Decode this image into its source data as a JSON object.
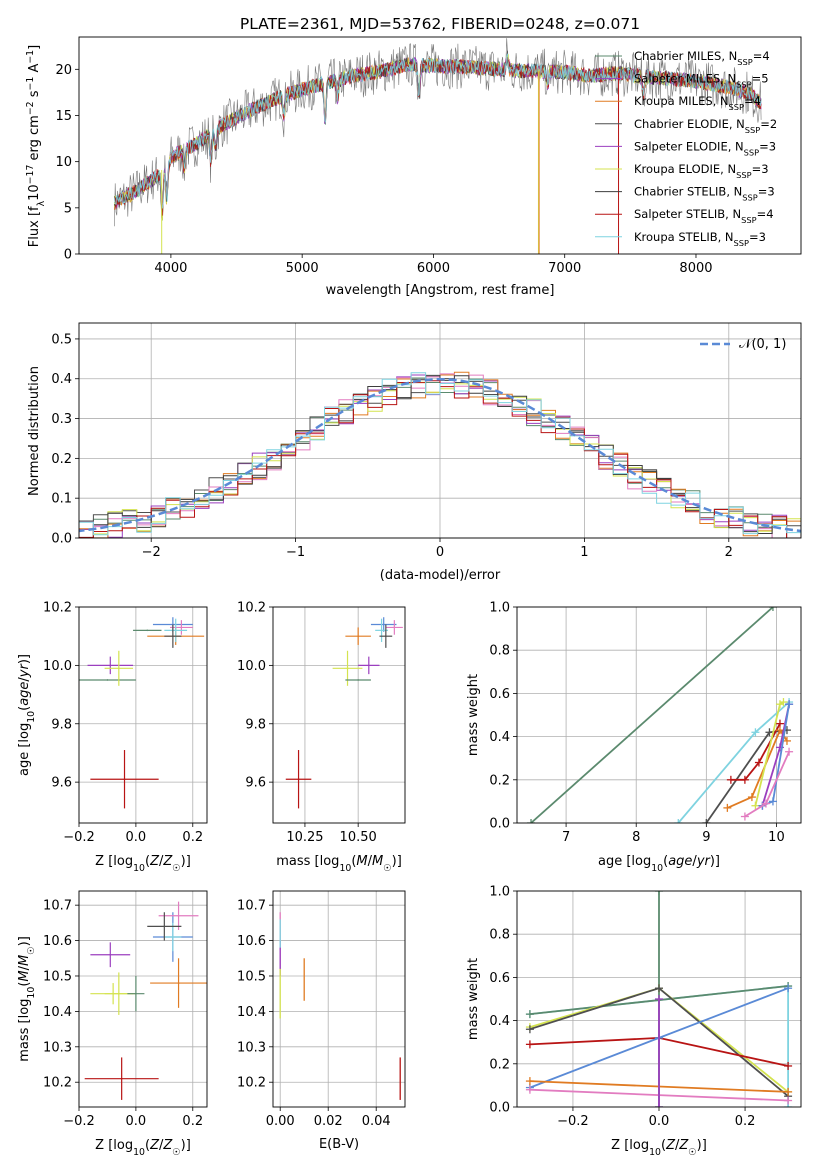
{
  "figure": {
    "title": "PLATE=2361, MJD=53762, FIBERID=0248, z=0.071"
  },
  "colors": {
    "chabrier_miles": "#5b8a6e",
    "salpeter_miles": "#9b3fbf",
    "kroupa_miles": "#e07b22",
    "chabrier_elodie": "#4f4f4f",
    "salpeter_elodie": "#9b3fbf",
    "kroupa_elodie": "#d4e34f",
    "chabrier_stelib": "#3d3d3d",
    "salpeter_stelib": "#b81414",
    "kroupa_stelib": "#7fd3e0",
    "blue": "#5a8ad6",
    "pink": "#e27cc0",
    "gray": "#7f7f7f"
  },
  "chart_data": [
    {
      "type": "line",
      "name": "spectrum",
      "xlabel": "wavelength [Angstrom, rest frame]",
      "ylabel": "Flux [f_λ 10^-17 erg cm^-2 s^-1 A^-1]",
      "xlim": [
        3300,
        8800
      ],
      "ylim": [
        0,
        23.5
      ],
      "xticks": [
        4000,
        5000,
        6000,
        7000,
        8000
      ],
      "yticks": [
        0,
        5,
        10,
        15,
        20
      ],
      "legend_placement": "top-right",
      "legend": [
        {
          "label": "Chabrier MILES, N",
          "sub": "SSP",
          "val": "=4",
          "color": "#5b8a6e"
        },
        {
          "label": "Salpeter MILES, N",
          "sub": "SSP",
          "val": "=5",
          "color": "#9b3fbf"
        },
        {
          "label": "Kroupa MILES, N",
          "sub": "SSP",
          "val": "=4",
          "color": "#e07b22"
        },
        {
          "label": "Chabrier ELODIE, N",
          "sub": "SSP",
          "val": "=2",
          "color": "#4f4f4f"
        },
        {
          "label": "Salpeter ELODIE, N",
          "sub": "SSP",
          "val": "=3",
          "color": "#9b3fbf"
        },
        {
          "label": "Kroupa ELODIE, N",
          "sub": "SSP",
          "val": "=3",
          "color": "#d4e34f"
        },
        {
          "label": "Chabrier STELIB, N",
          "sub": "SSP",
          "val": "=3",
          "color": "#3d3d3d"
        },
        {
          "label": "Salpeter STELIB, N",
          "sub": "SSP",
          "val": "=4",
          "color": "#b81414"
        },
        {
          "label": "Kroupa STELIB, N",
          "sub": "SSP",
          "val": "=3",
          "color": "#7fd3e0"
        }
      ],
      "continuum": {
        "x": [
          3570,
          3700,
          3900,
          4000,
          4200,
          4400,
          4600,
          4800,
          5000,
          5200,
          5400,
          5600,
          5800,
          6000,
          6200,
          6400,
          6600,
          6800,
          7000,
          7200,
          7400,
          7600,
          7800,
          8000,
          8200,
          8400,
          8500
        ],
        "y": [
          5.5,
          6.5,
          8.5,
          10.5,
          12.0,
          14.0,
          15.5,
          16.8,
          17.8,
          18.6,
          19.3,
          19.8,
          20.5,
          20.4,
          20.3,
          20.1,
          19.9,
          19.8,
          19.7,
          19.3,
          19.6,
          19.2,
          19.0,
          18.7,
          18.2,
          17.5,
          16.2
        ]
      }
    },
    {
      "type": "histogram",
      "name": "residuals",
      "xlabel": "(data-model)/error",
      "ylabel": "Normed distribution",
      "xlim": [
        -2.5,
        2.5
      ],
      "ylim": [
        0,
        0.54
      ],
      "xticks": [
        -2,
        -1,
        0,
        1,
        2
      ],
      "yticks": [
        0.0,
        0.1,
        0.2,
        0.3,
        0.4,
        0.5
      ],
      "legend_placement": "top-right",
      "normal_label": "𝒩(0, 1)",
      "grid": true
    },
    {
      "type": "scatter",
      "name": "age_vs_Z",
      "xlabel": "Z [log10(Z/Z☉)]",
      "ylabel": "age  [log10(age/yr)]",
      "xlim": [
        -0.2,
        0.25
      ],
      "ylim": [
        9.46,
        10.2
      ],
      "xticks": [
        -0.2,
        0.0,
        0.2
      ],
      "yticks": [
        9.6,
        9.8,
        10.0,
        10.2
      ],
      "points": [
        {
          "x": -0.1,
          "y": 9.95,
          "ex": 0.1,
          "ey": 0.0,
          "c": "#5b8a6e"
        },
        {
          "x": -0.09,
          "y": 10.0,
          "ex": 0.08,
          "ey": 0.03,
          "c": "#9b3fbf"
        },
        {
          "x": -0.06,
          "y": 9.99,
          "ex": 0.05,
          "ey": 0.06,
          "c": "#d4e34f"
        },
        {
          "x": 0.04,
          "y": 10.12,
          "ex": 0.05,
          "ey": 0.0,
          "c": "#5b8a6e"
        },
        {
          "x": 0.14,
          "y": 10.1,
          "ex": 0.1,
          "ey": 0.03,
          "c": "#e07b22"
        },
        {
          "x": 0.13,
          "y": 10.14,
          "ex": 0.07,
          "ey": 0.025,
          "c": "#5a8ad6"
        },
        {
          "x": 0.16,
          "y": 10.13,
          "ex": 0.04,
          "ey": 0.025,
          "c": "#e27cc0"
        },
        {
          "x": 0.14,
          "y": 10.12,
          "ex": 0.04,
          "ey": 0.04,
          "c": "#7fd3e0"
        },
        {
          "x": 0.13,
          "y": 10.1,
          "ex": 0.03,
          "ey": 0.04,
          "c": "#4f4f4f"
        },
        {
          "x": -0.04,
          "y": 9.61,
          "ex": 0.12,
          "ey": 0.1,
          "c": "#b81414"
        }
      ]
    },
    {
      "type": "scatter",
      "name": "age_vs_mass",
      "xlabel": "mass [log10(M/M☉)]",
      "ylabel": "",
      "xlim": [
        10.1,
        10.72
      ],
      "ylim": [
        9.46,
        10.2
      ],
      "xticks": [
        10.25,
        10.5
      ],
      "xtick_labels": [
        "10.25",
        "10.50"
      ],
      "yticks": [
        9.6,
        9.8,
        10.0,
        10.2
      ],
      "points": [
        {
          "x": 10.22,
          "y": 9.61,
          "ex": 0.06,
          "ey": 0.1,
          "c": "#b81414"
        },
        {
          "x": 10.45,
          "y": 9.99,
          "ex": 0.07,
          "ey": 0.06,
          "c": "#d4e34f"
        },
        {
          "x": 10.55,
          "y": 10.0,
          "ex": 0.05,
          "ey": 0.03,
          "c": "#9b3fbf"
        },
        {
          "x": 10.5,
          "y": 9.95,
          "ex": 0.06,
          "ey": 0.0,
          "c": "#5b8a6e"
        },
        {
          "x": 10.5,
          "y": 10.1,
          "ex": 0.06,
          "ey": 0.03,
          "c": "#e07b22"
        },
        {
          "x": 10.62,
          "y": 10.14,
          "ex": 0.06,
          "ey": 0.025,
          "c": "#5a8ad6"
        },
        {
          "x": 10.67,
          "y": 10.13,
          "ex": 0.04,
          "ey": 0.025,
          "c": "#e27cc0"
        },
        {
          "x": 10.61,
          "y": 10.12,
          "ex": 0.03,
          "ey": 0.04,
          "c": "#7fd3e0"
        },
        {
          "x": 10.63,
          "y": 10.1,
          "ex": 0.03,
          "ey": 0.04,
          "c": "#4f4f4f"
        }
      ]
    },
    {
      "type": "line",
      "name": "weight_vs_age",
      "xlabel": "age  [log10(age/yr)]",
      "ylabel": "mass weight",
      "xlim": [
        6.3,
        10.35
      ],
      "ylim": [
        0,
        1
      ],
      "xticks": [
        7,
        8,
        9,
        10
      ],
      "yticks": [
        0.0,
        0.2,
        0.4,
        0.6,
        0.8,
        1.0
      ],
      "series": [
        {
          "c": "#5b8a6e",
          "x": [
            6.5,
            9.95
          ],
          "y": [
            0.0,
            1.0
          ]
        },
        {
          "c": "#7fd3e0",
          "x": [
            8.6,
            9.7,
            10.18
          ],
          "y": [
            0.0,
            0.42,
            0.56
          ]
        },
        {
          "c": "#4f4f4f",
          "x": [
            9.0,
            9.9,
            10.15
          ],
          "y": [
            0.0,
            0.42,
            0.43
          ]
        },
        {
          "c": "#b81414",
          "x": [
            9.35,
            9.55,
            9.75,
            10.05
          ],
          "y": [
            0.2,
            0.2,
            0.28,
            0.46
          ]
        },
        {
          "c": "#e07b22",
          "x": [
            9.3,
            9.65,
            10.05,
            10.15
          ],
          "y": [
            0.07,
            0.12,
            0.43,
            0.38
          ]
        },
        {
          "c": "#d4e34f",
          "x": [
            9.7,
            10.05,
            10.1
          ],
          "y": [
            0.08,
            0.55,
            0.56
          ]
        },
        {
          "c": "#9b3fbf",
          "x": [
            9.8,
            10.05,
            10.18
          ],
          "y": [
            0.08,
            0.35,
            0.55
          ]
        },
        {
          "c": "#5a8ad6",
          "x": [
            9.8,
            9.95,
            10.18
          ],
          "y": [
            0.08,
            0.1,
            0.55
          ]
        },
        {
          "c": "#e27cc0",
          "x": [
            9.55,
            9.85,
            10.18
          ],
          "y": [
            0.03,
            0.09,
            0.33
          ]
        }
      ]
    },
    {
      "type": "scatter",
      "name": "mass_vs_Z",
      "xlabel": "Z [log10(Z/Z☉)]",
      "ylabel": "mass [log10(M/M☉)]",
      "xlim": [
        -0.2,
        0.25
      ],
      "ylim": [
        10.13,
        10.74
      ],
      "xticks": [
        -0.2,
        0.0,
        0.2
      ],
      "yticks": [
        10.2,
        10.3,
        10.4,
        10.5,
        10.6,
        10.7
      ],
      "points": [
        {
          "x": -0.09,
          "y": 10.56,
          "ex": 0.07,
          "ey": 0.035,
          "c": "#9b3fbf"
        },
        {
          "x": -0.08,
          "y": 10.45,
          "ex": 0.08,
          "ey": 0.03,
          "c": "#d4e34f"
        },
        {
          "x": -0.06,
          "y": 10.45,
          "ex": 0.05,
          "ey": 0.06,
          "c": "#d4e34f"
        },
        {
          "x": 0.0,
          "y": 10.45,
          "ex": 0.03,
          "ey": 0.05,
          "c": "#5b8a6e"
        },
        {
          "x": 0.15,
          "y": 10.48,
          "ex": 0.1,
          "ey": 0.07,
          "c": "#e07b22"
        },
        {
          "x": 0.13,
          "y": 10.61,
          "ex": 0.07,
          "ey": 0.07,
          "c": "#5a8ad6"
        },
        {
          "x": 0.15,
          "y": 10.67,
          "ex": 0.07,
          "ey": 0.04,
          "c": "#e27cc0"
        },
        {
          "x": 0.13,
          "y": 10.61,
          "ex": 0.03,
          "ey": 0.04,
          "c": "#7fd3e0"
        },
        {
          "x": 0.1,
          "y": 10.64,
          "ex": 0.06,
          "ey": 0.04,
          "c": "#4f4f4f"
        },
        {
          "x": -0.05,
          "y": 10.21,
          "ex": 0.13,
          "ey": 0.06,
          "c": "#b81414"
        }
      ]
    },
    {
      "type": "scatter",
      "name": "mass_vs_EBV",
      "xlabel": "E(B-V)",
      "ylabel": "",
      "xlim": [
        -0.003,
        0.052
      ],
      "ylim": [
        10.13,
        10.74
      ],
      "xticks": [
        0.0,
        0.02,
        0.04
      ],
      "xtick_labels": [
        "0.00",
        "0.02",
        "0.04"
      ],
      "yticks": [
        10.2,
        10.3,
        10.4,
        10.5,
        10.6,
        10.7
      ],
      "points": [
        {
          "x": 0.0,
          "y": 10.6,
          "ex": 0,
          "ey": 0.08,
          "c": "#e27cc0"
        },
        {
          "x": 0.0,
          "y": 10.55,
          "ex": 0,
          "ey": 0.05,
          "c": "#9b3fbf"
        },
        {
          "x": 0.0,
          "y": 10.45,
          "ex": 0,
          "ey": 0.07,
          "c": "#d4e34f"
        },
        {
          "x": 0.0,
          "y": 10.62,
          "ex": 0,
          "ey": 0.04,
          "c": "#7fd3e0"
        },
        {
          "x": 0.01,
          "y": 10.49,
          "ex": 0,
          "ey": 0.06,
          "c": "#e07b22"
        },
        {
          "x": 0.05,
          "y": 10.21,
          "ex": 0,
          "ey": 0.06,
          "c": "#b81414"
        }
      ]
    },
    {
      "type": "line",
      "name": "weight_vs_Z",
      "xlabel": "Z [log10(Z/Z☉)]",
      "ylabel": "mass weight",
      "xlim": [
        -0.33,
        0.33
      ],
      "ylim": [
        0,
        1
      ],
      "xticks": [
        -0.2,
        0.0,
        0.2
      ],
      "yticks": [
        0.0,
        0.2,
        0.4,
        0.6,
        0.8,
        1.0
      ],
      "series": [
        {
          "c": "#5b8a6e",
          "x": [
            0.0,
            0.0
          ],
          "y": [
            0.0,
            1.0
          ]
        },
        {
          "c": "#7fd3e0",
          "x": [
            -0.3,
            0.3,
            0.3
          ],
          "y": [
            0.43,
            0.56,
            0.0
          ]
        },
        {
          "c": "#5b8a6e",
          "x": [
            -0.3,
            0.3
          ],
          "y": [
            0.43,
            0.56
          ]
        },
        {
          "c": "#d4e34f",
          "x": [
            -0.3,
            0.0,
            0.3
          ],
          "y": [
            0.37,
            0.55,
            0.07
          ]
        },
        {
          "c": "#4f4f4f",
          "x": [
            -0.3,
            0.0,
            0.3
          ],
          "y": [
            0.36,
            0.55,
            0.05
          ]
        },
        {
          "c": "#b81414",
          "x": [
            -0.3,
            0.0,
            0.3
          ],
          "y": [
            0.29,
            0.32,
            0.19
          ]
        },
        {
          "c": "#5a8ad6",
          "x": [
            -0.3,
            0.0,
            0.3
          ],
          "y": [
            0.09,
            0.32,
            0.55
          ]
        },
        {
          "c": "#e07b22",
          "x": [
            -0.3,
            0.3
          ],
          "y": [
            0.12,
            0.07
          ]
        },
        {
          "c": "#e27cc0",
          "x": [
            -0.3,
            0.3
          ],
          "y": [
            0.08,
            0.03
          ]
        },
        {
          "c": "#9b3fbf",
          "x": [
            0.0,
            0.0
          ],
          "y": [
            0.0,
            0.5
          ]
        }
      ]
    }
  ]
}
